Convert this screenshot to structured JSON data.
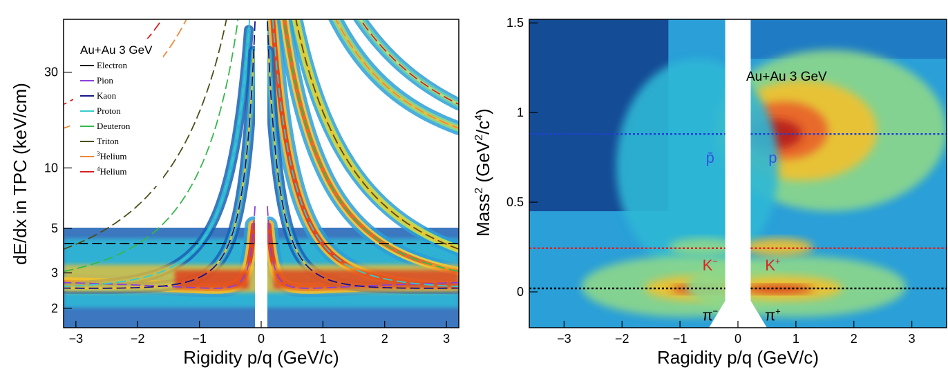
{
  "chart_data": [
    {
      "type": "heatmap",
      "title": "",
      "annotation": "Au+Au 3 GeV",
      "xlabel": "Rigidity p/q (GeV/c)",
      "ylabel": "dE/dx in TPC (keV/cm)",
      "xlim": [
        -3.2,
        3.2
      ],
      "ylim": [
        1.6,
        55
      ],
      "y_scale": "log",
      "x_ticks": [
        "−3",
        "−2",
        "−1",
        "0",
        "1",
        "2",
        "3"
      ],
      "x_tick_values": [
        -3,
        -2,
        -1,
        0,
        1,
        2,
        3
      ],
      "y_ticks": [
        "2",
        "3",
        "5",
        "10",
        "30"
      ],
      "y_tick_values": [
        2,
        3,
        5,
        10,
        30
      ],
      "legend": {
        "title": "Au+Au 3 GeV",
        "placement": "top-left",
        "entries": [
          {
            "name": "Electron",
            "color": "#000000"
          },
          {
            "name": "Pion",
            "color": "#8b3fd9"
          },
          {
            "name": "Kaon",
            "color": "#14148c"
          },
          {
            "name": "Proton",
            "color": "#33cccc"
          },
          {
            "name": "Deuteron",
            "color": "#33b84a"
          },
          {
            "name": "Triton",
            "color": "#4d4d1a"
          },
          {
            "name": "3Helium",
            "sup": "3",
            "base": "Helium",
            "color": "#f0883a"
          },
          {
            "name": "4Helium",
            "sup": "4",
            "base": "Helium",
            "color": "#d62020"
          }
        ]
      },
      "bands_mass": {
        "Electron": 0.000511,
        "Pion": 0.1396,
        "Kaon": 0.4937,
        "Proton": 0.9383,
        "Deuteron": 1.8756,
        "Triton": 2.8089,
        "3Helium": 2.8084,
        "4Helium": 3.7274
      },
      "bands_charge": {
        "Electron": 1,
        "Pion": 1,
        "Kaon": 1,
        "Proton": 1,
        "Deuteron": 1,
        "Triton": 1,
        "3Helium": 2,
        "4Helium": 2
      },
      "electron_plateau": 4.2,
      "mip_level": 2.7
    },
    {
      "type": "heatmap",
      "title": "",
      "annotation": "Au+Au 3 GeV",
      "xlabel": "Ragidity p/q (GeV/c)",
      "ylabel": "Mass2 (GeV2/c4)",
      "xlim": [
        -3.6,
        3.6
      ],
      "ylim": [
        -0.2,
        1.52
      ],
      "x_ticks": [
        "−3",
        "−2",
        "−1",
        "0",
        "1",
        "2",
        "3"
      ],
      "x_tick_values": [
        -3,
        -2,
        -1,
        0,
        1,
        2,
        3
      ],
      "y_ticks": [
        "0",
        "0.5",
        "1",
        "1.5"
      ],
      "y_tick_values": [
        0,
        0.5,
        1,
        1.5
      ],
      "reference_lines": [
        {
          "y": 0.8804,
          "color": "#1f3fd6"
        },
        {
          "y": 0.2437,
          "color": "#e02020"
        },
        {
          "y": 0.0195,
          "color": "#000000"
        }
      ],
      "particle_labels": [
        {
          "text": "p̄",
          "x": -0.48,
          "y": 0.72,
          "color": "#3355dd"
        },
        {
          "text": "p",
          "x": 0.6,
          "y": 0.72,
          "color": "#3355dd"
        },
        {
          "text": "K",
          "sup": "−",
          "x": -0.48,
          "y": 0.12,
          "color": "#e02020"
        },
        {
          "text": "K",
          "sup": "+",
          "x": 0.6,
          "y": 0.12,
          "color": "#e02020"
        },
        {
          "text": "π",
          "sup": "−",
          "x": -0.48,
          "y": -0.16,
          "color": "#000000"
        },
        {
          "text": "π",
          "sup": "+",
          "x": 0.6,
          "y": -0.16,
          "color": "#000000"
        }
      ]
    }
  ]
}
